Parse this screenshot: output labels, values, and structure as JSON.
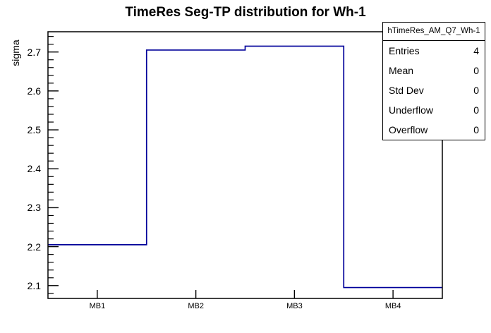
{
  "title": "TimeRes Seg-TP distribution for Wh-1",
  "y_axis": {
    "title": "sigma",
    "tick_labels": [
      "2.1",
      "2.2",
      "2.3",
      "2.4",
      "2.5",
      "2.6",
      "2.7"
    ]
  },
  "x_axis": {
    "labels": [
      "MB1",
      "MB2",
      "MB3",
      "MB4"
    ]
  },
  "stats_box": {
    "header": "hTimeRes_AM_Q7_Wh-1",
    "rows": [
      {
        "label": "Entries",
        "value": "4"
      },
      {
        "label": "Mean",
        "value": "0"
      },
      {
        "label": "Std Dev",
        "value": "0"
      },
      {
        "label": "Underflow",
        "value": "0"
      },
      {
        "label": "Overflow",
        "value": "0"
      }
    ]
  },
  "colors": {
    "histogram_line": "#00009a",
    "frame": "#000000",
    "background": "#ffffff",
    "text": "#000000"
  },
  "chart_data": {
    "type": "line",
    "style": "step-histogram",
    "title": "TimeRes Seg-TP distribution for Wh-1",
    "xlabel": "",
    "ylabel": "sigma",
    "categories": [
      "MB1",
      "MB2",
      "MB3",
      "MB4"
    ],
    "values": [
      2.205,
      2.705,
      2.715,
      2.095
    ],
    "ylim": [
      2.067,
      2.752
    ],
    "y_major_ticks": [
      2.1,
      2.2,
      2.3,
      2.4,
      2.5,
      2.6,
      2.7
    ],
    "y_minor_tick_step": 0.02,
    "grid": false,
    "legend": false,
    "stats": {
      "name": "hTimeRes_AM_Q7_Wh-1",
      "entries": 4,
      "mean": 0,
      "std_dev": 0,
      "underflow": 0,
      "overflow": 0
    }
  }
}
